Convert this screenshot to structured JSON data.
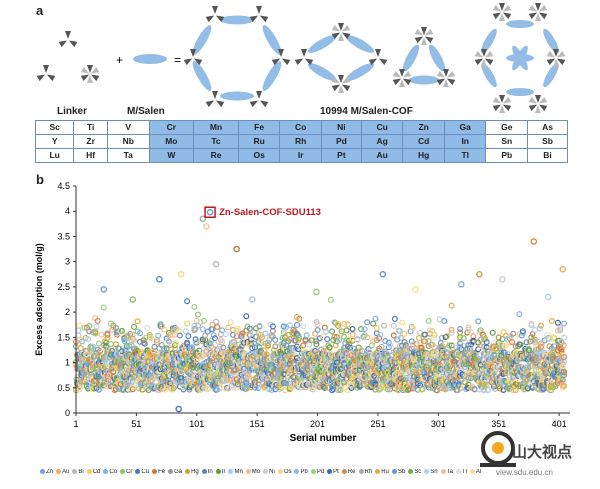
{
  "panels": {
    "a": "a",
    "b": "b"
  },
  "schematic": {
    "plus": "+",
    "equals": "=",
    "linker_label": "Linker",
    "msalen_label": "M/Salen",
    "cof_label": "10994 M/Salen-COF"
  },
  "element_table": {
    "rows": [
      [
        "Sc",
        "Ti",
        "V",
        "Cr",
        "Mn",
        "Fe",
        "Co",
        "Ni",
        "Cu",
        "Zn",
        "Ga",
        "Ge",
        "As"
      ],
      [
        "Y",
        "Zr",
        "Nb",
        "Mo",
        "Tc",
        "Ru",
        "Rh",
        "Pd",
        "Ag",
        "Cd",
        "In",
        "Sn",
        "Sb"
      ],
      [
        "Lu",
        "Hf",
        "Ta",
        "W",
        "Re",
        "Os",
        "Ir",
        "Pt",
        "Au",
        "Hg",
        "Tl",
        "Pb",
        "Bi"
      ]
    ],
    "highlight_cols": [
      3,
      10
    ]
  },
  "chart_data": {
    "type": "scatter",
    "title": "",
    "xlabel": "Serial number",
    "ylabel": "Excess adsorption (mol/g)",
    "xlim": [
      1,
      410
    ],
    "ylim": [
      0,
      4.5
    ],
    "xticks": [
      1,
      51,
      101,
      151,
      201,
      251,
      301,
      351,
      401
    ],
    "yticks": [
      0,
      0.5,
      1,
      1.5,
      2,
      2.5,
      3,
      3.5,
      4,
      4.5
    ],
    "grid": false,
    "annotation": {
      "text": "Zn-Salen-COF-SDU113",
      "x": 112,
      "y": 3.98
    },
    "highlight_point": {
      "x": 112,
      "y": 3.98
    },
    "peaks": [
      {
        "x": 24,
        "y": 2.45
      },
      {
        "x": 48,
        "y": 2.25
      },
      {
        "x": 70,
        "y": 2.65
      },
      {
        "x": 88,
        "y": 2.75
      },
      {
        "x": 106,
        "y": 3.85
      },
      {
        "x": 109,
        "y": 3.7
      },
      {
        "x": 117,
        "y": 2.95
      },
      {
        "x": 134,
        "y": 3.25
      },
      {
        "x": 147,
        "y": 2.25
      },
      {
        "x": 200,
        "y": 2.4
      },
      {
        "x": 255,
        "y": 2.75
      },
      {
        "x": 282,
        "y": 2.45
      },
      {
        "x": 320,
        "y": 2.55
      },
      {
        "x": 335,
        "y": 2.75
      },
      {
        "x": 354,
        "y": 2.65
      },
      {
        "x": 380,
        "y": 3.4
      },
      {
        "x": 392,
        "y": 2.3
      },
      {
        "x": 404,
        "y": 2.85
      },
      {
        "x": 86,
        "y": 0.08
      }
    ],
    "series": [
      {
        "name": "Zn",
        "color": "#6fa0d6"
      },
      {
        "name": "Au",
        "color": "#f0a868"
      },
      {
        "name": "Bi",
        "color": "#b8b8b8"
      },
      {
        "name": "Cd",
        "color": "#f2cf5a"
      },
      {
        "name": "Co",
        "color": "#7fb2e5"
      },
      {
        "name": "Cr",
        "color": "#8dc26f"
      },
      {
        "name": "Cu",
        "color": "#4a78b8"
      },
      {
        "name": "Fe",
        "color": "#c87a3c"
      },
      {
        "name": "Ga",
        "color": "#999999"
      },
      {
        "name": "Hg",
        "color": "#c8a23c"
      },
      {
        "name": "In",
        "color": "#5a86c4"
      },
      {
        "name": "Ir",
        "color": "#5f9a4a"
      },
      {
        "name": "Mn",
        "color": "#a6c6ee"
      },
      {
        "name": "Mo",
        "color": "#f4bc8c"
      },
      {
        "name": "Ni",
        "color": "#cccccc"
      },
      {
        "name": "Os",
        "color": "#f6da84"
      },
      {
        "name": "Pb",
        "color": "#8ab8e8"
      },
      {
        "name": "Pd",
        "color": "#9ccf80"
      },
      {
        "name": "Pt",
        "color": "#3a68a8"
      },
      {
        "name": "Re",
        "color": "#d88848"
      },
      {
        "name": "Rh",
        "color": "#aaaaaa"
      },
      {
        "name": "Ru",
        "color": "#d8b04c"
      },
      {
        "name": "Sb",
        "color": "#6a96d0"
      },
      {
        "name": "Sc",
        "color": "#70a858"
      },
      {
        "name": "Sn",
        "color": "#b4d0f0"
      },
      {
        "name": "Ta",
        "color": "#f0c49c"
      },
      {
        "name": "Tl",
        "color": "#dddddd"
      },
      {
        "name": "Al",
        "color": "#f8e090"
      }
    ]
  },
  "watermark": {
    "cn": "山大视点",
    "url": "view.sdu.edu.cn"
  }
}
